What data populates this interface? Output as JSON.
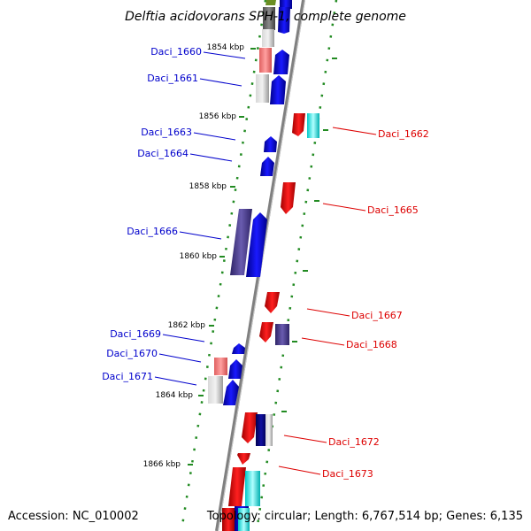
{
  "title": "Delftia acidovorans SPH-1, complete genome",
  "footer": {
    "accession": "Accession: NC_010002",
    "topology": "Topology: circular; Length: 6,767,514 bp; Genes: 6,135"
  },
  "colors": {
    "forward": "#0000ff",
    "reverse": "#ff0000",
    "pink": "#f08080",
    "gray": "#b0b0b0",
    "cyan": "#00ffff",
    "purple": "#4b3c8c",
    "backbone": "#808080",
    "dots": "#228b22"
  },
  "scale_ticks": [
    {
      "label": "1854 kbp"
    },
    {
      "label": "1856 kbp"
    },
    {
      "label": "1858 kbp"
    },
    {
      "label": "1860 kbp"
    },
    {
      "label": "1862 kbp"
    },
    {
      "label": "1864 kbp"
    },
    {
      "label": "1866 kbp"
    }
  ],
  "genes_left": [
    {
      "label": "Daci_1660"
    },
    {
      "label": "Daci_1661"
    },
    {
      "label": "Daci_1663"
    },
    {
      "label": "Daci_1664"
    },
    {
      "label": "Daci_1666"
    },
    {
      "label": "Daci_1669"
    },
    {
      "label": "Daci_1670"
    },
    {
      "label": "Daci_1671"
    }
  ],
  "genes_right": [
    {
      "label": "Daci_1662"
    },
    {
      "label": "Daci_1665"
    },
    {
      "label": "Daci_1667"
    },
    {
      "label": "Daci_1668"
    },
    {
      "label": "Daci_1672"
    },
    {
      "label": "Daci_1673"
    }
  ]
}
